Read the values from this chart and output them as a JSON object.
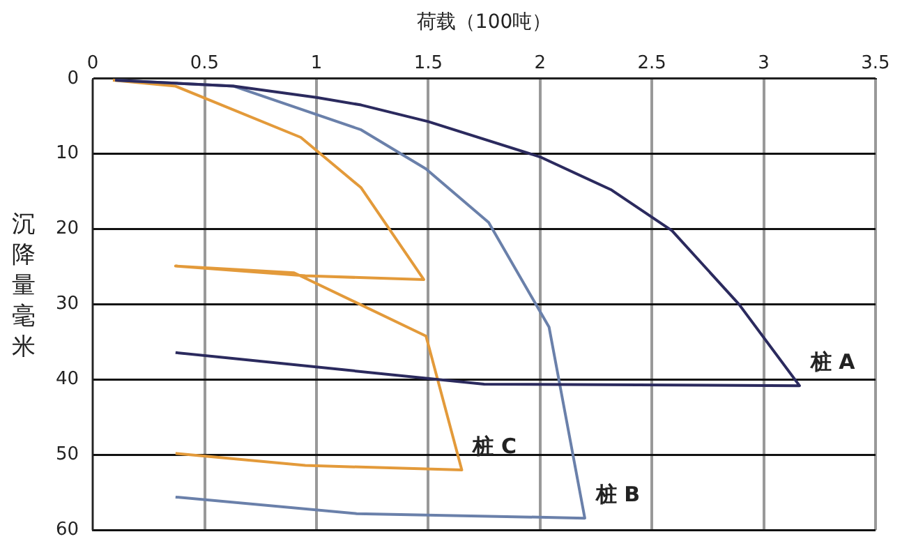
{
  "chart_data": {
    "type": "line",
    "xlabel": "荷载（100吨）",
    "ylabel": "沉降量毫米",
    "xlim": [
      0,
      3.5
    ],
    "xticks": [
      0,
      0.5,
      1.0,
      1.5,
      2.0,
      2.5,
      3.0,
      3.5
    ],
    "ylim": [
      60,
      0
    ],
    "yticks": [
      0,
      10,
      20,
      30,
      40,
      50,
      60
    ],
    "grid": true,
    "marker": "none",
    "line_style": "solid",
    "series": [
      {
        "name": "桩 A",
        "color": "#2b2a5e",
        "x": [
          0.1,
          0.63,
          1.0,
          1.2,
          1.5,
          2.0,
          2.32,
          2.59,
          2.89,
          3.16,
          1.75,
          0.37
        ],
        "values": [
          0.2,
          1.0,
          2.5,
          3.5,
          5.7,
          10.4,
          14.8,
          20.2,
          30,
          40.8,
          40.6,
          36.4
        ]
      },
      {
        "name": "桩 B",
        "color": "#6a80aa",
        "x": [
          0.1,
          0.63,
          1.2,
          1.49,
          1.77,
          2.04,
          2.2,
          1.18,
          0.37
        ],
        "values": [
          0.2,
          1.0,
          6.8,
          12,
          19.1,
          33,
          58.4,
          57.8,
          55.6
        ]
      },
      {
        "name": "桩 C",
        "color": "#e39a3a",
        "x": [
          0.09,
          0.37,
          0.93,
          1.2,
          1.48,
          0.95,
          0.37,
          0.9,
          1.49,
          1.65,
          0.95,
          0.37
        ],
        "values": [
          0.2,
          1.0,
          7.8,
          14.5,
          26.7,
          26.2,
          24.9,
          25.8,
          34.2,
          52,
          51.4,
          49.8
        ]
      }
    ]
  }
}
